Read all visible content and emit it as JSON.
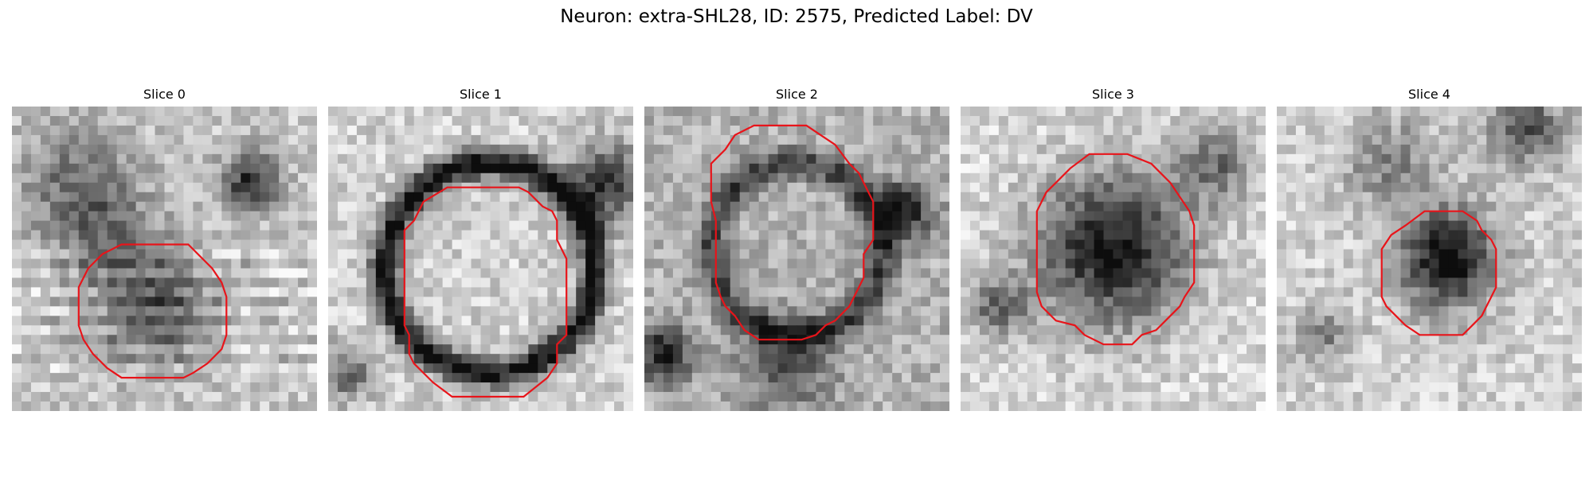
{
  "figure": {
    "title": "Neuron: extra-SHL28, ID: 2575, Predicted Label: DV"
  },
  "slices": [
    {
      "label": "Slice 0",
      "seed": 11,
      "contour_color": "#e8141a"
    },
    {
      "label": "Slice 1",
      "seed": 23,
      "contour_color": "#e8141a"
    },
    {
      "label": "Slice 2",
      "seed": 37,
      "contour_color": "#e8141a"
    },
    {
      "label": "Slice 3",
      "seed": 53,
      "contour_color": "#e8141a"
    },
    {
      "label": "Slice 4",
      "seed": 71,
      "contour_color": "#e8141a"
    }
  ]
}
